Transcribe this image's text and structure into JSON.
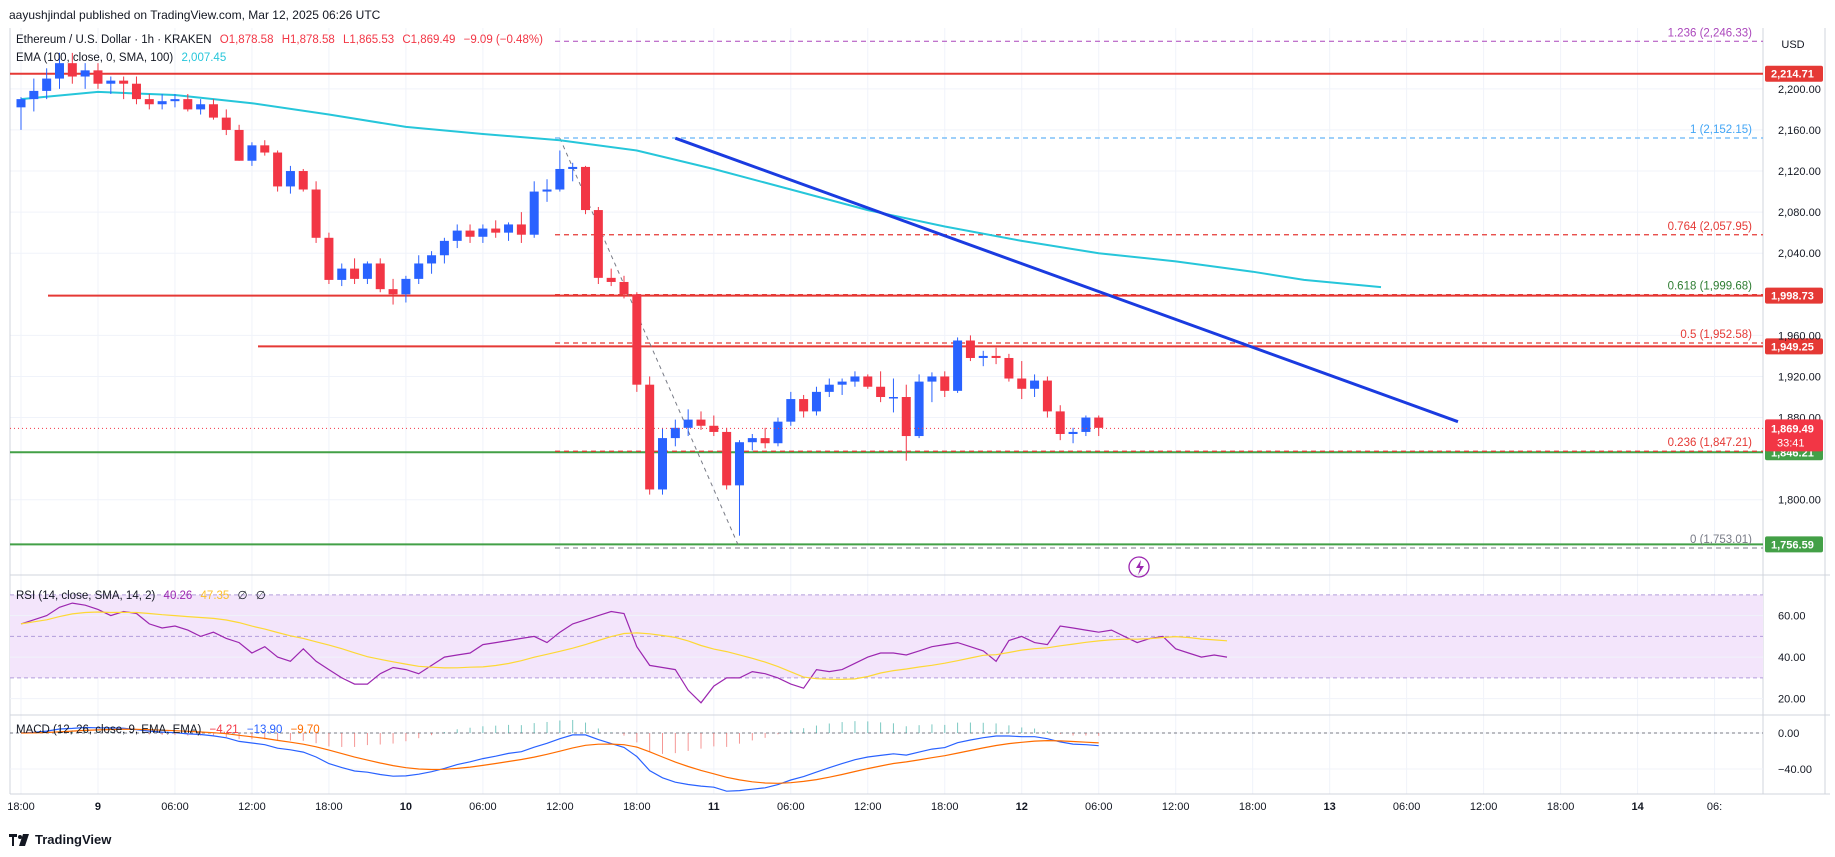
{
  "header": {
    "published": "aayushjindal published on TradingView.com, Mar 12, 2025 06:26 UTC"
  },
  "legend": {
    "symbol": "Ethereum / U.S. Dollar · 1h · KRAKEN",
    "open": "O1,878.58",
    "high": "H1,878.58",
    "low": "L1,865.53",
    "close": "C1,869.49",
    "change": "−9.09 (−0.48%)",
    "ema_label": "EMA (100, close, 0, SMA, 100)",
    "ema_value": "2,007.45",
    "rsi_label": "RSI (14, close, SMA, 14, 2)",
    "rsi_value": "40.26",
    "rsi_sma_value": "47.35",
    "rsi_extra1": "∅",
    "rsi_extra2": "∅",
    "macd_label": "MACD (12, 26, close, 9, EMA, EMA)",
    "macd_hist": "−4.21",
    "macd_line": "−13.90",
    "macd_signal": "−9.70"
  },
  "currency": "USD",
  "footer": {
    "brand": "TradingView"
  },
  "colors": {
    "up": "#2962ff",
    "down": "#f23645",
    "ema": "#26c6da",
    "trendline": "#1a3be0",
    "resistance": "#e53935",
    "support": "#43a047",
    "fib": "#e53935",
    "fib_top": "#ab47bc",
    "fib_one": "#64b5f6",
    "rsi_line": "#9c27b0",
    "rsi_sma": "#fdd835",
    "rsi_band": "#f3e5fb",
    "macd_line": "#2962ff",
    "macd_signal": "#ff6d00"
  },
  "chart_data": {
    "type": "candlestick",
    "y_range": [
      1720,
      2250
    ],
    "price_ticks": [
      "2,200.00",
      "2,160.00",
      "2,120.00",
      "2,080.00",
      "2,040.00",
      "1,960.00",
      "1,920.00",
      "1,880.00",
      "1,800.00"
    ],
    "price_tick_values": [
      2200,
      2160,
      2120,
      2080,
      2040,
      1960,
      1920,
      1880,
      1800
    ],
    "time_labels": [
      "18:00",
      "9",
      "06:00",
      "12:00",
      "18:00",
      "10",
      "06:00",
      "12:00",
      "18:00",
      "11",
      "06:00",
      "12:00",
      "18:00",
      "12",
      "06:00",
      "12:00",
      "18:00",
      "13",
      "06:00",
      "12:00",
      "18:00",
      "14",
      "06:"
    ],
    "time_label_bars": [
      0,
      6,
      12,
      18,
      24,
      30,
      36,
      42,
      48,
      54,
      60,
      66,
      72,
      78,
      84,
      90,
      96,
      102,
      108,
      114,
      120,
      126,
      132
    ],
    "candles": [
      [
        2182,
        2192,
        2160,
        2190
      ],
      [
        2190,
        2210,
        2178,
        2198
      ],
      [
        2198,
        2220,
        2190,
        2210
      ],
      [
        2210,
        2235,
        2200,
        2225
      ],
      [
        2225,
        2235,
        2205,
        2212
      ],
      [
        2212,
        2225,
        2200,
        2218
      ],
      [
        2218,
        2225,
        2200,
        2205
      ],
      [
        2205,
        2212,
        2195,
        2208
      ],
      [
        2208,
        2212,
        2190,
        2205
      ],
      [
        2205,
        2212,
        2185,
        2190
      ],
      [
        2190,
        2195,
        2180,
        2185
      ],
      [
        2185,
        2195,
        2180,
        2188
      ],
      [
        2188,
        2195,
        2182,
        2190
      ],
      [
        2190,
        2195,
        2178,
        2180
      ],
      [
        2180,
        2190,
        2175,
        2185
      ],
      [
        2185,
        2190,
        2170,
        2172
      ],
      [
        2172,
        2180,
        2155,
        2160
      ],
      [
        2160,
        2165,
        2130,
        2130
      ],
      [
        2130,
        2148,
        2125,
        2145
      ],
      [
        2145,
        2150,
        2135,
        2138
      ],
      [
        2138,
        2140,
        2100,
        2105
      ],
      [
        2105,
        2125,
        2098,
        2120
      ],
      [
        2120,
        2122,
        2100,
        2102
      ],
      [
        2102,
        2110,
        2050,
        2055
      ],
      [
        2055,
        2060,
        2010,
        2014
      ],
      [
        2014,
        2030,
        2008,
        2025
      ],
      [
        2025,
        2035,
        2010,
        2015
      ],
      [
        2015,
        2032,
        2010,
        2030
      ],
      [
        2030,
        2035,
        2002,
        2005
      ],
      [
        2005,
        2015,
        1990,
        2000
      ],
      [
        2000,
        2018,
        1992,
        2015
      ],
      [
        2015,
        2038,
        2010,
        2030
      ],
      [
        2030,
        2042,
        2020,
        2038
      ],
      [
        2038,
        2055,
        2030,
        2052
      ],
      [
        2052,
        2068,
        2045,
        2062
      ],
      [
        2062,
        2068,
        2050,
        2056
      ],
      [
        2056,
        2068,
        2050,
        2064
      ],
      [
        2064,
        2072,
        2055,
        2060
      ],
      [
        2060,
        2070,
        2052,
        2068
      ],
      [
        2068,
        2080,
        2050,
        2058
      ],
      [
        2058,
        2110,
        2055,
        2100
      ],
      [
        2100,
        2112,
        2090,
        2102
      ],
      [
        2102,
        2140,
        2100,
        2122
      ],
      [
        2122,
        2128,
        2110,
        2124
      ],
      [
        2124,
        2125,
        2078,
        2082
      ],
      [
        2082,
        2085,
        2010,
        2016
      ],
      [
        2016,
        2025,
        2008,
        2012
      ],
      [
        2012,
        2018,
        1996,
        2000
      ],
      [
        2000,
        2002,
        1905,
        1912
      ],
      [
        1912,
        1920,
        1805,
        1810
      ],
      [
        1810,
        1870,
        1805,
        1860
      ],
      [
        1860,
        1878,
        1852,
        1870
      ],
      [
        1870,
        1888,
        1862,
        1878
      ],
      [
        1878,
        1886,
        1868,
        1872
      ],
      [
        1872,
        1882,
        1862,
        1866
      ],
      [
        1866,
        1870,
        1810,
        1814
      ],
      [
        1814,
        1858,
        1765,
        1856
      ],
      [
        1856,
        1864,
        1848,
        1860
      ],
      [
        1860,
        1870,
        1850,
        1855
      ],
      [
        1855,
        1880,
        1852,
        1876
      ],
      [
        1876,
        1905,
        1872,
        1898
      ],
      [
        1898,
        1902,
        1880,
        1886
      ],
      [
        1886,
        1910,
        1882,
        1905
      ],
      [
        1905,
        1918,
        1900,
        1912
      ],
      [
        1912,
        1918,
        1902,
        1915
      ],
      [
        1915,
        1925,
        1910,
        1920
      ],
      [
        1920,
        1922,
        1908,
        1910
      ],
      [
        1910,
        1925,
        1895,
        1900
      ],
      [
        1900,
        1918,
        1885,
        1900
      ],
      [
        1900,
        1912,
        1838,
        1862
      ],
      [
        1862,
        1922,
        1860,
        1915
      ],
      [
        1915,
        1924,
        1895,
        1920
      ],
      [
        1920,
        1925,
        1900,
        1906
      ],
      [
        1906,
        1958,
        1904,
        1955
      ],
      [
        1955,
        1960,
        1935,
        1938
      ],
      [
        1938,
        1945,
        1930,
        1940
      ],
      [
        1940,
        1948,
        1932,
        1938
      ],
      [
        1938,
        1942,
        1915,
        1918
      ],
      [
        1918,
        1935,
        1898,
        1908
      ],
      [
        1908,
        1922,
        1900,
        1916
      ],
      [
        1916,
        1920,
        1880,
        1886
      ],
      [
        1886,
        1892,
        1858,
        1864
      ],
      [
        1864,
        1870,
        1855,
        1866
      ],
      [
        1866,
        1882,
        1862,
        1880
      ],
      [
        1880,
        1882,
        1862,
        1870
      ]
    ],
    "ema_100": [
      [
        0,
        2190
      ],
      [
        6,
        2196
      ],
      [
        12,
        2194
      ],
      [
        18,
        2186
      ],
      [
        24,
        2174
      ],
      [
        30,
        2163
      ],
      [
        36,
        2157
      ],
      [
        42,
        2150
      ],
      [
        48,
        2138
      ],
      [
        54,
        2120
      ],
      [
        60,
        2100
      ],
      [
        66,
        2080
      ],
      [
        72,
        2063
      ],
      [
        78,
        2049
      ],
      [
        84,
        2040
      ],
      [
        90,
        2031
      ],
      [
        96,
        2018
      ],
      [
        88,
        2035
      ]
    ],
    "ema_end": [
      [
        90,
        2026
      ],
      [
        96,
        2018
      ],
      [
        100,
        2015
      ],
      [
        105,
        2007
      ]
    ],
    "horizontal_levels": [
      {
        "value": 2214.71,
        "label": "2,214.71",
        "kind": "resistance"
      },
      {
        "value": 1998.73,
        "label": "1,998.73",
        "kind": "resistance"
      },
      {
        "value": 1949.25,
        "label": "1,949.25",
        "kind": "resistance"
      },
      {
        "value": 1846.21,
        "label": "1,846.21",
        "kind": "support"
      },
      {
        "value": 1756.59,
        "label": "1,756.59",
        "kind": "support"
      }
    ],
    "current_price": {
      "value": 1869.49,
      "label": "1,869.49",
      "countdown": "33:41"
    },
    "fib_levels": [
      {
        "value": 2246.33,
        "label": "1.236 (2,246.33)"
      },
      {
        "value": 2152.15,
        "label": "1 (2,152.15)"
      },
      {
        "value": 2057.95,
        "label": "0.764 (2,057.95)"
      },
      {
        "value": 1999.68,
        "label": "0.618 (1,999.68)"
      },
      {
        "value": 1952.58,
        "label": "0.5 (1,952.58)"
      },
      {
        "value": 1847.21,
        "label": "0.236 (1,847.21)"
      },
      {
        "value": 1753.01,
        "label": "0 (1,753.01)"
      }
    ],
    "trendline": [
      [
        51,
        2152
      ],
      [
        112,
        1876
      ]
    ],
    "rsi": {
      "ticks": [
        "60.00",
        "40.00",
        "20.00"
      ],
      "tick_values": [
        60,
        40,
        20
      ],
      "band": [
        30,
        70
      ],
      "values": [
        56,
        58,
        60,
        64,
        66,
        65,
        63,
        60,
        62,
        61,
        56,
        54,
        55,
        53,
        50,
        52,
        49,
        47,
        42,
        45,
        40,
        38,
        44,
        38,
        34,
        30,
        27,
        27,
        32,
        35,
        34,
        32,
        36,
        40,
        41,
        42,
        46,
        47,
        48,
        49,
        50,
        47,
        52,
        56,
        58,
        60,
        62,
        61,
        45,
        36,
        35,
        34,
        24,
        18,
        26,
        30,
        30,
        33,
        32,
        30,
        27,
        25,
        34,
        33,
        34,
        37,
        40,
        42,
        42,
        41,
        43,
        45,
        46,
        47,
        45,
        43,
        38,
        48,
        50,
        47,
        46,
        55,
        54,
        53,
        52,
        53,
        50,
        47,
        49,
        50,
        44,
        42,
        40,
        41,
        40
      ]
    },
    "macd": {
      "ticks": [
        "0.00",
        "−40.00"
      ],
      "tick_values": [
        0,
        -40
      ]
    }
  }
}
